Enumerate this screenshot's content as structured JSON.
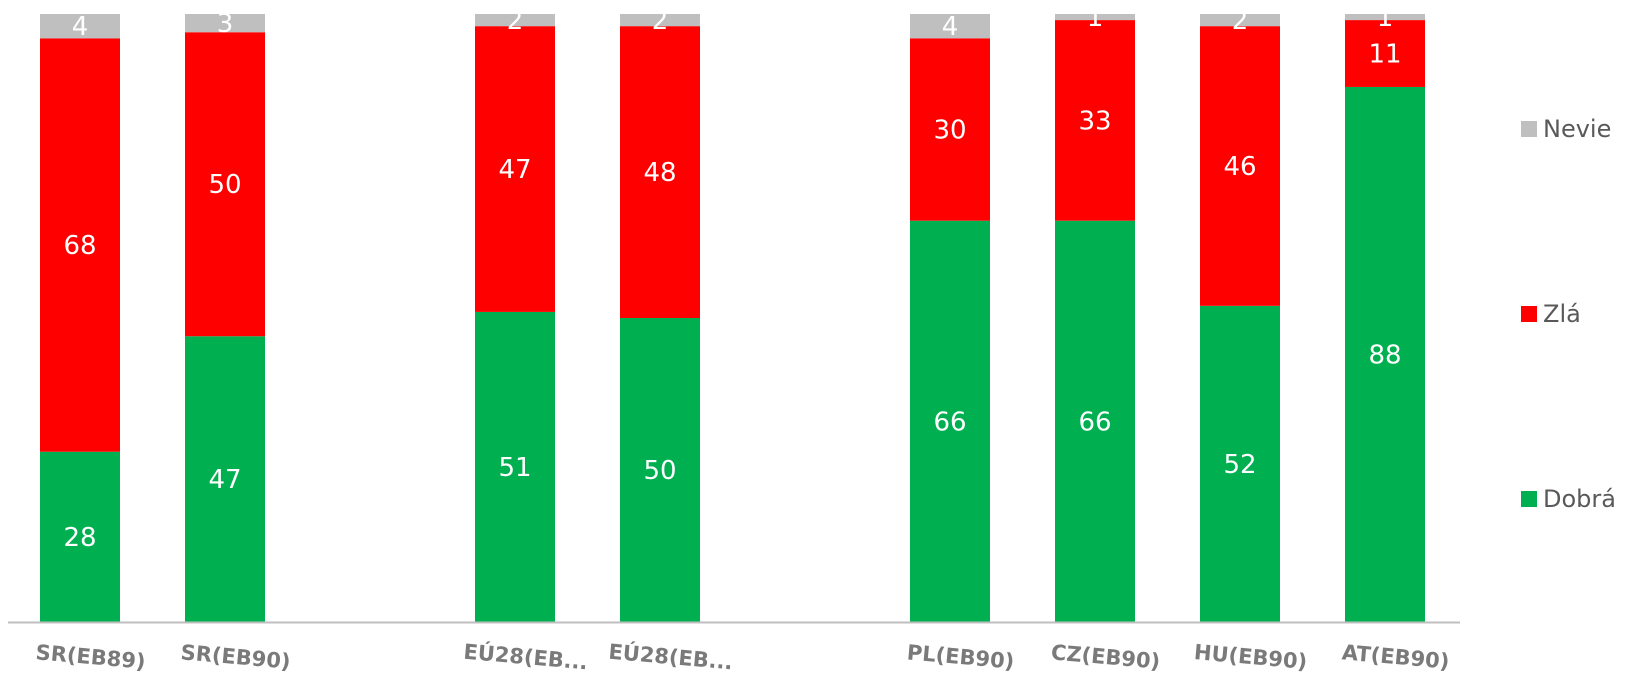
{
  "chart_data": {
    "type": "bar",
    "stacked": true,
    "categories": [
      "SR(EB89)",
      "SR(EB90)",
      "EÚ28(EB...",
      "EÚ28(EB...",
      "PL(EB90)",
      "CZ(EB90)",
      "HU(EB90)",
      "AT(EB90)"
    ],
    "category_groups": [
      [
        0,
        1
      ],
      [
        2,
        3
      ],
      [
        4,
        5,
        6,
        7
      ]
    ],
    "ylim": [
      0,
      100
    ],
    "grid": false,
    "legend_position": "right",
    "series": [
      {
        "name": "Dobrá",
        "color": "#00b050",
        "values": [
          28,
          47,
          51,
          50,
          66,
          66,
          52,
          88
        ]
      },
      {
        "name": "Zlá",
        "color": "#ff0000",
        "values": [
          68,
          50,
          47,
          48,
          30,
          33,
          46,
          11
        ]
      },
      {
        "name": "Nevie",
        "color": "#bfbfbf",
        "values": [
          4,
          3,
          2,
          2,
          4,
          1,
          2,
          1
        ]
      }
    ],
    "legend_order": [
      "Nevie",
      "Zlá",
      "Dobrá"
    ],
    "axis_color": "#bfbfbf"
  }
}
